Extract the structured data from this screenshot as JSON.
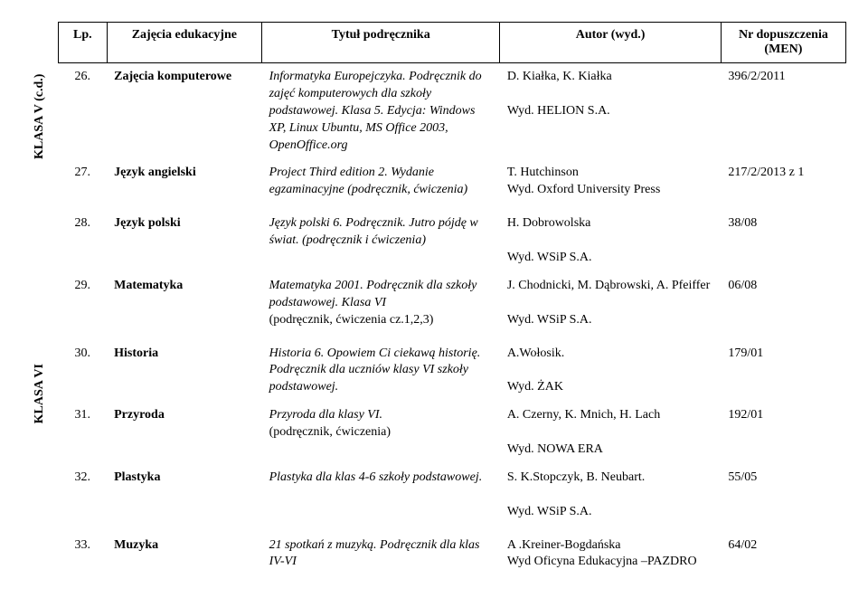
{
  "headers": {
    "lp": "Lp.",
    "subject": "Zajęcia edukacyjne",
    "title": "Tytuł podręcznika",
    "author": "Autor (wyd.)",
    "nr": "Nr dopuszczenia (MEN)"
  },
  "sideLabels": {
    "top": "KLASA V (c.d.)",
    "bottom": "KLASA VI"
  },
  "rows": [
    {
      "lp": "26.",
      "subject": "Zajęcia komputerowe",
      "title": "Informatyka Europejczyka. Podręcznik do zajęć komputerowych dla szkoły podstawowej. Klasa 5. Edycja: Windows XP, Linux Ubuntu, MS Office 2003, OpenOffice.org",
      "author1": "D. Kiałka, K. Kiałka",
      "author2": "Wyd. HELION S.A.",
      "nr": "396/2/2011"
    },
    {
      "lp": "27.",
      "subject": "Język angielski",
      "title": "Project Third edition 2. Wydanie egzaminacyjne (podręcznik, ćwiczenia)",
      "author1": "T. Hutchinson",
      "author2": "Wyd. Oxford University Press",
      "nr": "217/2/2013 z 1"
    },
    {
      "lp": "28.",
      "subject": "Język polski",
      "title": "Język polski 6. Podręcznik. Jutro pójdę w świat. (podręcznik i ćwiczenia)",
      "author1": "H. Dobrowolska",
      "author2": "Wyd. WSiP S.A.",
      "nr": "38/08"
    },
    {
      "lp": "29.",
      "subject": "Matematyka",
      "title_a": "Matematyka 2001. Podręcznik dla szkoły podstawowej. Klasa VI",
      "title_b": "(podręcznik, ćwiczenia cz.1,2,3)",
      "author1": "J. Chodnicki, M. Dąbrowski, A. Pfeiffer",
      "author2": "Wyd. WSiP S.A.",
      "nr": "06/08"
    },
    {
      "lp": "30.",
      "subject": "Historia",
      "title": "Historia 6. Opowiem Ci ciekawą historię. Podręcznik dla uczniów klasy VI szkoły podstawowej.",
      "author1": "A.Wołosik.",
      "author2": "Wyd. ŻAK",
      "nr": "179/01"
    },
    {
      "lp": "31.",
      "subject": "Przyroda",
      "title_a": "Przyroda dla klasy VI.",
      "title_b": "(podręcznik, ćwiczenia)",
      "author1": "A. Czerny, K. Mnich, H. Lach",
      "author2": "Wyd. NOWA ERA",
      "nr": "192/01"
    },
    {
      "lp": "32.",
      "subject": "Plastyka",
      "title": "Plastyka dla klas 4-6 szkoły podstawowej.",
      "author1": "S. K.Stopczyk, B. Neubart.",
      "author2": "Wyd. WSiP S.A.",
      "nr": "55/05"
    },
    {
      "lp": "33.",
      "subject": "Muzyka",
      "title": "21 spotkań z muzyką. Podręcznik dla klas IV-VI",
      "author1": "A .Kreiner-Bogdańska",
      "author2": "Wyd Oficyna Edukacyjna –PAZDRO",
      "nr": "64/02"
    }
  ]
}
